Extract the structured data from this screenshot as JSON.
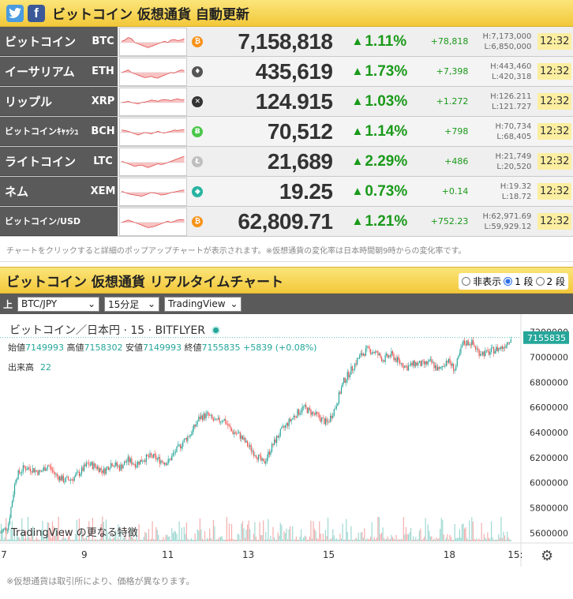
{
  "header": {
    "title": "ビットコイン 仮想通貨 自動更新",
    "twitter_icon": "twitter-icon",
    "facebook_icon": "facebook-icon"
  },
  "rows": [
    {
      "name": "ビットコイン",
      "sym": "BTC",
      "price": "7,158,818",
      "pct": "1.11%",
      "chg": "+78,818",
      "high": "H:7,173,000",
      "low": "L:6,850,000",
      "time": "12:32",
      "color": "#f7931a",
      "glyph": "₿",
      "spark": [
        0.55,
        0.6,
        0.7,
        0.65,
        0.5,
        0.45,
        0.4,
        0.35,
        0.3,
        0.35,
        0.4,
        0.45,
        0.5,
        0.55,
        0.5,
        0.6,
        0.62,
        0.58,
        0.6,
        0.65
      ]
    },
    {
      "name": "イーサリアム",
      "sym": "ETH",
      "price": "435,619",
      "pct": "1.73%",
      "chg": "+7,398",
      "high": "H:443,460",
      "low": "L:420,318",
      "time": "12:32",
      "color": "#555555",
      "glyph": "♦",
      "spark": [
        0.5,
        0.55,
        0.6,
        0.5,
        0.45,
        0.4,
        0.35,
        0.3,
        0.32,
        0.35,
        0.3,
        0.28,
        0.35,
        0.4,
        0.45,
        0.5,
        0.48,
        0.55,
        0.6,
        0.58
      ]
    },
    {
      "name": "リップル",
      "sym": "XRP",
      "price": "124.915",
      "pct": "1.03%",
      "chg": "+1.272",
      "high": "H:126.211",
      "low": "L:121.727",
      "time": "12:32",
      "color": "#333333",
      "glyph": "✕",
      "spark": [
        0.5,
        0.52,
        0.55,
        0.5,
        0.48,
        0.45,
        0.5,
        0.52,
        0.55,
        0.6,
        0.58,
        0.55,
        0.6,
        0.62,
        0.6,
        0.58,
        0.62,
        0.65,
        0.6,
        0.62
      ]
    },
    {
      "name": "ビットコインｷｬｯｼｭ",
      "sym": "BCH",
      "price": "70,512",
      "pct": "1.14%",
      "chg": "+798",
      "high": "H:70,734",
      "low": "L:68,405",
      "time": "12:32",
      "color": "#4cc74c",
      "glyph": "Ƀ",
      "spark": [
        0.6,
        0.58,
        0.55,
        0.5,
        0.45,
        0.4,
        0.45,
        0.5,
        0.48,
        0.45,
        0.5,
        0.55,
        0.5,
        0.48,
        0.52,
        0.55,
        0.6,
        0.58,
        0.6,
        0.62
      ]
    },
    {
      "name": "ライトコイン",
      "sym": "LTC",
      "price": "21,689",
      "pct": "2.29%",
      "chg": "+486",
      "high": "H:21,749",
      "low": "L:20,520",
      "time": "12:32",
      "color": "#bfbfbf",
      "glyph": "Ł",
      "spark": [
        0.55,
        0.5,
        0.45,
        0.4,
        0.35,
        0.38,
        0.4,
        0.35,
        0.3,
        0.35,
        0.4,
        0.45,
        0.42,
        0.45,
        0.5,
        0.55,
        0.6,
        0.65,
        0.7,
        0.75
      ]
    },
    {
      "name": "ネム",
      "sym": "XEM",
      "price": "19.25",
      "pct": "0.73%",
      "chg": "+0.14",
      "high": "H:19.32",
      "low": "L:18.72",
      "time": "12:32",
      "color": "#28b4a0",
      "glyph": "◆",
      "spark": [
        0.55,
        0.5,
        0.45,
        0.42,
        0.4,
        0.38,
        0.35,
        0.4,
        0.45,
        0.5,
        0.48,
        0.45,
        0.4,
        0.42,
        0.45,
        0.5,
        0.52,
        0.55,
        0.58,
        0.6
      ]
    },
    {
      "name": "ビットコイン/USD",
      "sym": "",
      "price": "62,809.71",
      "pct": "1.21%",
      "chg": "+752.23",
      "high": "H:62,971.69",
      "low": "L:59,929.12",
      "time": "12:32",
      "color": "#f7931a",
      "glyph": "₿",
      "spark": [
        0.5,
        0.55,
        0.6,
        0.55,
        0.5,
        0.45,
        0.4,
        0.35,
        0.3,
        0.32,
        0.35,
        0.4,
        0.45,
        0.5,
        0.55,
        0.5,
        0.55,
        0.6,
        0.62,
        0.6
      ]
    }
  ],
  "note": "チャートをクリックすると詳細のポップアップチャートが表示されます。※仮想通貨の変化率は日本時間朝9時からの変化率です。",
  "section2": {
    "title": "ビットコイン 仮想通貨 リアルタイムチャート",
    "radio_hide": "非表示",
    "radio_1": "1 段",
    "radio_2": "2 段"
  },
  "controls": {
    "label": "上",
    "pair": "BTC/JPY",
    "interval": "15分足",
    "provider": "TradingView"
  },
  "chart_header": {
    "symbol": "ビットコイン／日本円 · 15 · BITFLYER",
    "open_label": "始値",
    "open": "7149993",
    "high_label": "高値",
    "high": "7158302",
    "low_label": "安値",
    "low": "7149993",
    "close_label": "終値",
    "close": "7155835",
    "change": "+5839 (+0.08%)",
    "volume_label": "出来高",
    "volume": "22",
    "watermark": "TradingView の更なる特徴",
    "price_tag": "7155835"
  },
  "chart_data": {
    "type": "line",
    "x_ticks": [
      "7",
      "9",
      "11",
      "13",
      "15",
      "18",
      "15:"
    ],
    "x_tick_days": [
      7,
      9,
      11,
      13,
      15,
      18,
      19.6
    ],
    "y_ticks": [
      5600000,
      5800000,
      6000000,
      6200000,
      6400000,
      6600000,
      6800000,
      7000000,
      7200000
    ],
    "ylim": [
      5520000,
      7280000
    ],
    "xlim": [
      6.9,
      19.85
    ],
    "x": [
      6.9,
      7.1,
      7.25,
      7.4,
      7.6,
      7.8,
      8.0,
      8.2,
      8.4,
      8.6,
      8.8,
      9.0,
      9.2,
      9.4,
      9.6,
      9.8,
      10.0,
      10.2,
      10.4,
      10.6,
      10.8,
      11.0,
      11.2,
      11.4,
      11.6,
      11.8,
      12.0,
      12.2,
      12.4,
      12.6,
      12.8,
      13.0,
      13.2,
      13.4,
      13.6,
      13.8,
      14.0,
      14.2,
      14.4,
      14.6,
      14.8,
      15.0,
      15.2,
      15.4,
      15.6,
      15.8,
      16.0,
      16.2,
      16.4,
      16.6,
      16.8,
      17.0,
      17.2,
      17.4,
      17.6,
      17.8,
      18.0,
      18.2,
      18.4,
      18.6,
      18.8,
      19.0,
      19.2,
      19.4,
      19.6
    ],
    "y": [
      5600000,
      5650000,
      6050000,
      6120000,
      6110000,
      6080000,
      6140000,
      6060000,
      6020000,
      6030000,
      6080000,
      6150000,
      6130000,
      6090000,
      6160000,
      6120000,
      6180000,
      6150000,
      6190000,
      6210000,
      6180000,
      6160000,
      6250000,
      6330000,
      6400000,
      6520000,
      6540000,
      6480000,
      6510000,
      6410000,
      6380000,
      6300000,
      6230000,
      6150000,
      6280000,
      6390000,
      6470000,
      6540000,
      6600000,
      6560000,
      6520000,
      6470000,
      6600000,
      6800000,
      6900000,
      7000000,
      7060000,
      7040000,
      6980000,
      7020000,
      6960000,
      6920000,
      6950000,
      6940000,
      6960000,
      6890000,
      6980000,
      6900000,
      7110000,
      7120000,
      7040000,
      7030000,
      7060000,
      7080000,
      7155835
    ],
    "series": [
      {
        "values": [
          5600000,
          5650000,
          6050000,
          6120000,
          6110000,
          6080000,
          6140000,
          6060000,
          6020000,
          6030000,
          6080000,
          6150000,
          6130000,
          6090000,
          6160000,
          6120000,
          6180000,
          6150000,
          6190000,
          6210000,
          6180000,
          6160000,
          6250000,
          6330000,
          6400000,
          6520000,
          6540000,
          6480000,
          6510000,
          6410000,
          6380000,
          6300000,
          6230000,
          6150000,
          6280000,
          6390000,
          6470000,
          6540000,
          6600000,
          6560000,
          6520000,
          6470000,
          6600000,
          6800000,
          6900000,
          7000000,
          7060000,
          7040000,
          6980000,
          7020000,
          6960000,
          6920000,
          6950000,
          6940000,
          6960000,
          6890000,
          6980000,
          6900000,
          7110000,
          7120000,
          7040000,
          7030000,
          7060000,
          7080000,
          7155835
        ]
      }
    ]
  },
  "footer": "※仮想通貨は取引所により、価格が異なります。"
}
